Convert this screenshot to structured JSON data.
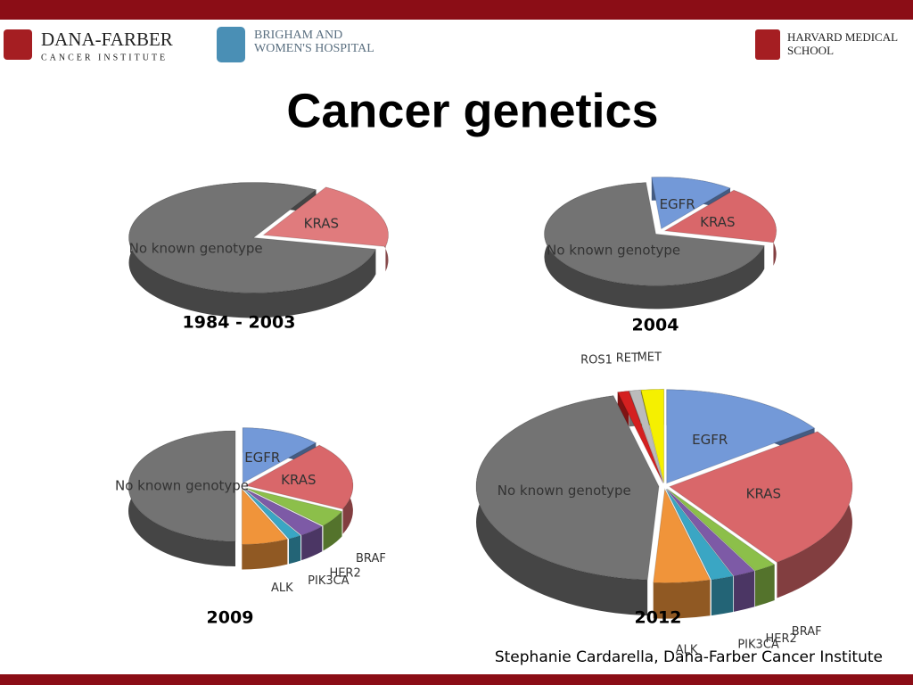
{
  "header": {
    "logo_left": [
      "DANA-FARBER",
      "CANCER INSTITUTE"
    ],
    "logo_middle": [
      "BRIGHAM AND",
      "WOMEN'S HOSPITAL"
    ],
    "logo_right": [
      "HARVARD MEDICAL",
      "SCHOOL"
    ],
    "title": "Cancer genetics"
  },
  "chart_data": [
    {
      "type": "pie",
      "title": "1984 - 2003",
      "categories": [
        "KRAS",
        "No known genotype"
      ],
      "values": [
        20,
        80
      ],
      "colors": [
        "#e07b7d",
        "#737373"
      ]
    },
    {
      "type": "pie",
      "title": "2004",
      "categories": [
        "EGFR",
        "KRAS",
        "No known genotype"
      ],
      "values": [
        12,
        18,
        70
      ],
      "colors": [
        "#7399d8",
        "#d9676a",
        "#737373"
      ]
    },
    {
      "type": "pie",
      "title": "2009",
      "categories": [
        "EGFR",
        "KRAS",
        "BRAF",
        "HER2",
        "PIK3CA",
        "ALK",
        "No known genotype"
      ],
      "values": [
        12,
        20,
        5,
        4,
        2,
        7,
        50
      ],
      "colors": [
        "#7399d8",
        "#d9676a",
        "#8cbf4a",
        "#7d5aa6",
        "#3aa6c4",
        "#f0943a",
        "#737373"
      ]
    },
    {
      "type": "pie",
      "title": "2012",
      "categories": [
        "EGFR",
        "KRAS",
        "BRAF",
        "HER2",
        "PIK3CA",
        "ALK",
        "No known genotype",
        "ROS1",
        "RET",
        "MET"
      ],
      "values": [
        15,
        25,
        2,
        2,
        2,
        5,
        45,
        1,
        1,
        2
      ],
      "colors": [
        "#7399d8",
        "#d9676a",
        "#8cbf4a",
        "#7d5aa6",
        "#3aa6c4",
        "#f0943a",
        "#737373",
        "#d42020",
        "#bbbbbb",
        "#f5f000"
      ]
    }
  ],
  "footer": "Stephanie Cardarella, Dana-Farber Cancer Institute"
}
